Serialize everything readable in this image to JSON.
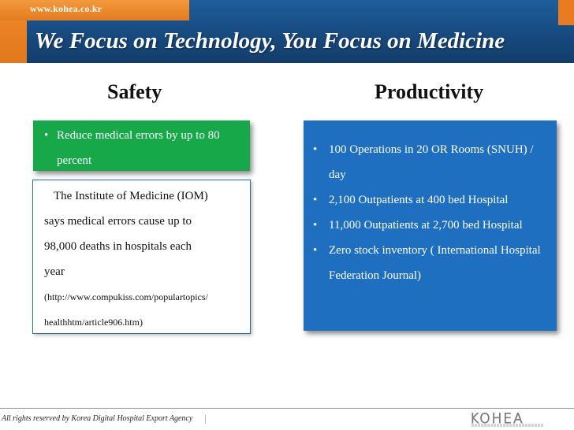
{
  "header": {
    "url": "www.kohea.co.kr",
    "headline": "We Focus on Technology, You Focus on Medicine",
    "colors": {
      "primary_blue": "#1f5e9b",
      "accent_orange": "#e97c20"
    }
  },
  "safety": {
    "title": "Safety",
    "bullet": "Reduce medical errors by up to 80 percent",
    "iom_lines": [
      "The Institute of Medicine (IOM)",
      "says medical errors cause up to",
      "98,000 deaths in hospitals each",
      "year"
    ],
    "source_lines": [
      "(http://www.compukiss.com/populartopics/",
      "healthhtm/article906.htm)"
    ],
    "box_color": "#17a84a"
  },
  "productivity": {
    "title": "Productivity",
    "bullets": [
      "100 Operations in 20 OR Rooms (SNUH) / day",
      "2,100 Outpatients at 400 bed Hospital",
      "11,000 Outpatients at 2,700 bed Hospital",
      "Zero stock inventory ( International Hospital Federation Journal)"
    ],
    "box_color": "#1f6fc0"
  },
  "footer": {
    "copyright": "All rights reserved by Korea Digital Hospital Export Agency",
    "logo_text": "KOHEA"
  }
}
